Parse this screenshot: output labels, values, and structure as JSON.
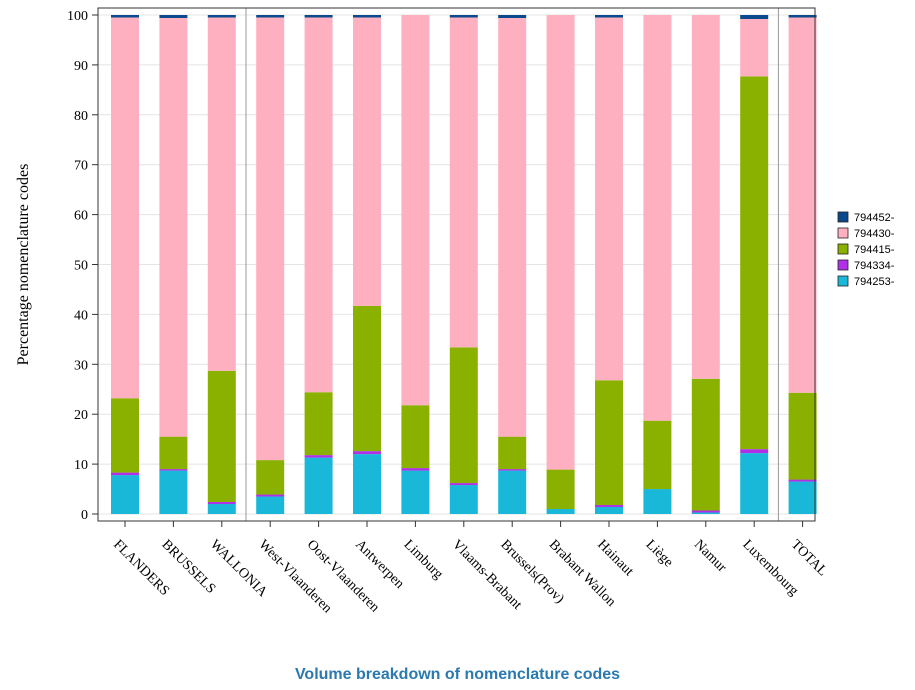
{
  "caption": "Volume breakdown of nomenclature codes",
  "chart_data": {
    "type": "bar",
    "stacked": true,
    "title": "",
    "xlabel": "",
    "ylabel": "Percentage nomenclature codes",
    "ylim": [
      0,
      100
    ],
    "yticks": [
      0,
      10,
      20,
      30,
      40,
      50,
      60,
      70,
      80,
      90,
      100
    ],
    "grid": true,
    "legend_position": "right",
    "categories": [
      "FLANDERS",
      "BRUSSELS",
      "WALLONIA",
      "West-Vlaanderen",
      "Oost-Vlaanderen",
      "Antwerpen",
      "Limburg",
      "Vlaams-Brabant",
      "Brussels(Prov)",
      "Brabant Wallon",
      "Hainaut",
      "Liège",
      "Namur",
      "Luxembourg",
      "TOTAL"
    ],
    "group_separators_after": [
      2,
      13
    ],
    "series": [
      {
        "name": "794253-",
        "color": "#1ab8d8",
        "values": [
          7.8,
          8.7,
          2.0,
          3.5,
          11.3,
          12.0,
          8.7,
          5.8,
          8.7,
          1.0,
          1.4,
          5.0,
          0.3,
          12.2,
          6.5
        ]
      },
      {
        "name": "794334-",
        "color": "#b030e8",
        "values": [
          0.5,
          0.3,
          0.4,
          0.4,
          0.5,
          0.6,
          0.5,
          0.4,
          0.3,
          0.0,
          0.4,
          0.0,
          0.4,
          0.8,
          0.4
        ]
      },
      {
        "name": "794415-",
        "color": "#8ab000",
        "values": [
          14.9,
          6.5,
          26.3,
          6.9,
          12.6,
          29.1,
          12.6,
          27.2,
          6.5,
          7.9,
          25.0,
          13.7,
          26.4,
          74.7,
          17.4
        ]
      },
      {
        "name": "794430-",
        "color": "#ffb0c0",
        "values": [
          76.3,
          83.9,
          70.8,
          88.7,
          75.1,
          57.8,
          78.2,
          66.1,
          83.9,
          91.1,
          72.7,
          81.3,
          72.9,
          11.5,
          75.2
        ]
      },
      {
        "name": "794452-",
        "color": "#0a4a8c",
        "values": [
          0.5,
          0.6,
          0.5,
          0.5,
          0.5,
          0.5,
          0.0,
          0.5,
          0.6,
          0.0,
          0.5,
          0.0,
          0.0,
          0.8,
          0.5
        ]
      }
    ]
  }
}
